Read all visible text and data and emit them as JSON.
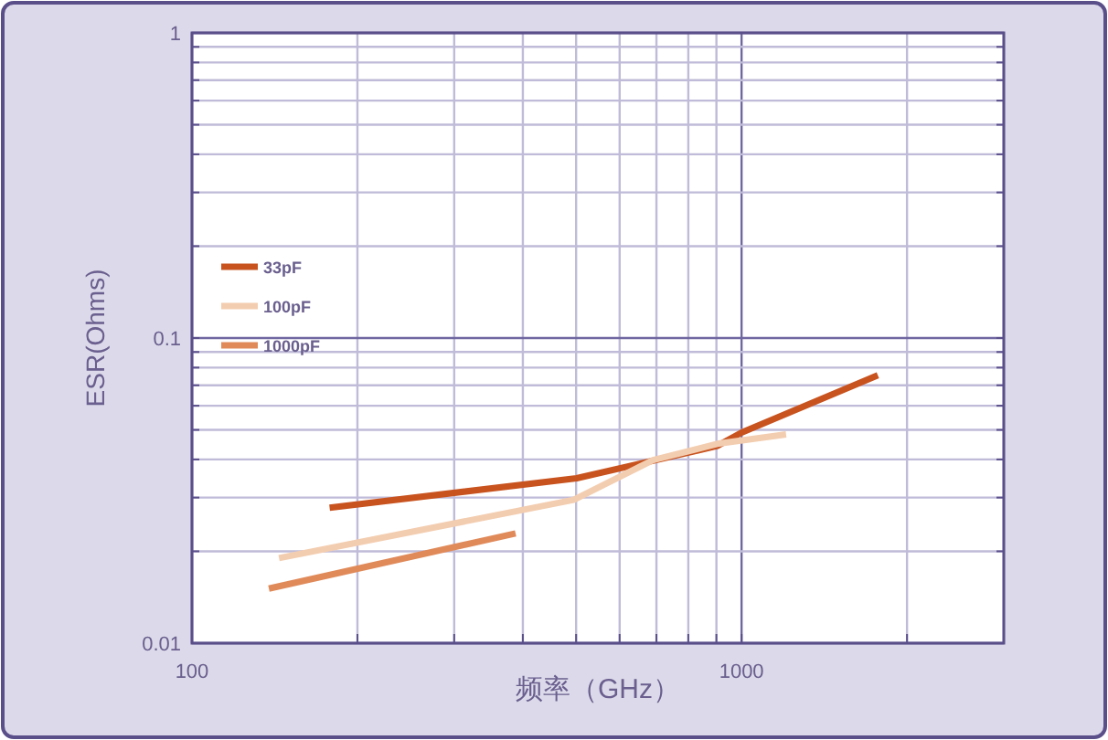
{
  "chart_data": {
    "type": "line",
    "xlabel": "频率（GHz）",
    "ylabel": "ESR(Ohms)",
    "log": "xy",
    "grid": true,
    "legend": "top left",
    "line_style": "solid",
    "xlim": [
      100,
      3000
    ],
    "ylim": [
      0.01,
      1
    ],
    "xticks": [
      100,
      {
        "value": 200,
        "label": null
      },
      {
        "value": 300,
        "label": null
      },
      {
        "value": 400,
        "label": null
      },
      {
        "value": 500,
        "label": null
      },
      {
        "value": 600,
        "label": null
      },
      {
        "value": 700,
        "label": null
      },
      {
        "value": 800,
        "label": null
      },
      {
        "value": 900,
        "label": null
      },
      1000,
      {
        "value": 2000,
        "label": null
      },
      {
        "value": 3000,
        "label": null
      }
    ],
    "yticks": [
      0.01,
      {
        "value": 0.02,
        "label": null
      },
      {
        "value": 0.03,
        "label": null
      },
      {
        "value": 0.04,
        "label": null
      },
      {
        "value": 0.05,
        "label": null
      },
      {
        "value": 0.06,
        "label": null
      },
      {
        "value": 0.07,
        "label": null
      },
      {
        "value": 0.08,
        "label": null
      },
      {
        "value": 0.09,
        "label": null
      },
      0.1,
      {
        "value": 0.2,
        "label": null
      },
      {
        "value": 0.3,
        "label": null
      },
      {
        "value": 0.4,
        "label": null
      },
      {
        "value": 0.5,
        "label": null
      },
      {
        "value": 0.6,
        "label": null
      },
      {
        "value": 0.7,
        "label": null
      },
      {
        "value": 0.8,
        "label": null
      },
      {
        "value": 0.9,
        "label": null
      },
      1
    ],
    "series": [
      {
        "name": "33pF",
        "color": "#c8531f",
        "x": [
          178,
          501,
          903,
          1000,
          1770
        ],
        "values": [
          0.0278,
          0.0347,
          0.0443,
          0.049,
          0.0755
        ]
      },
      {
        "name": "100pF",
        "color": "#f3cdb0",
        "x": [
          144,
          495,
          690,
          903,
          1205
        ],
        "values": [
          0.019,
          0.0295,
          0.0398,
          0.045,
          0.0483
        ]
      },
      {
        "name": "1000pF",
        "color": "#e08a5a",
        "x": [
          138,
          388
        ],
        "values": [
          0.0151,
          0.0229
        ]
      }
    ]
  }
}
